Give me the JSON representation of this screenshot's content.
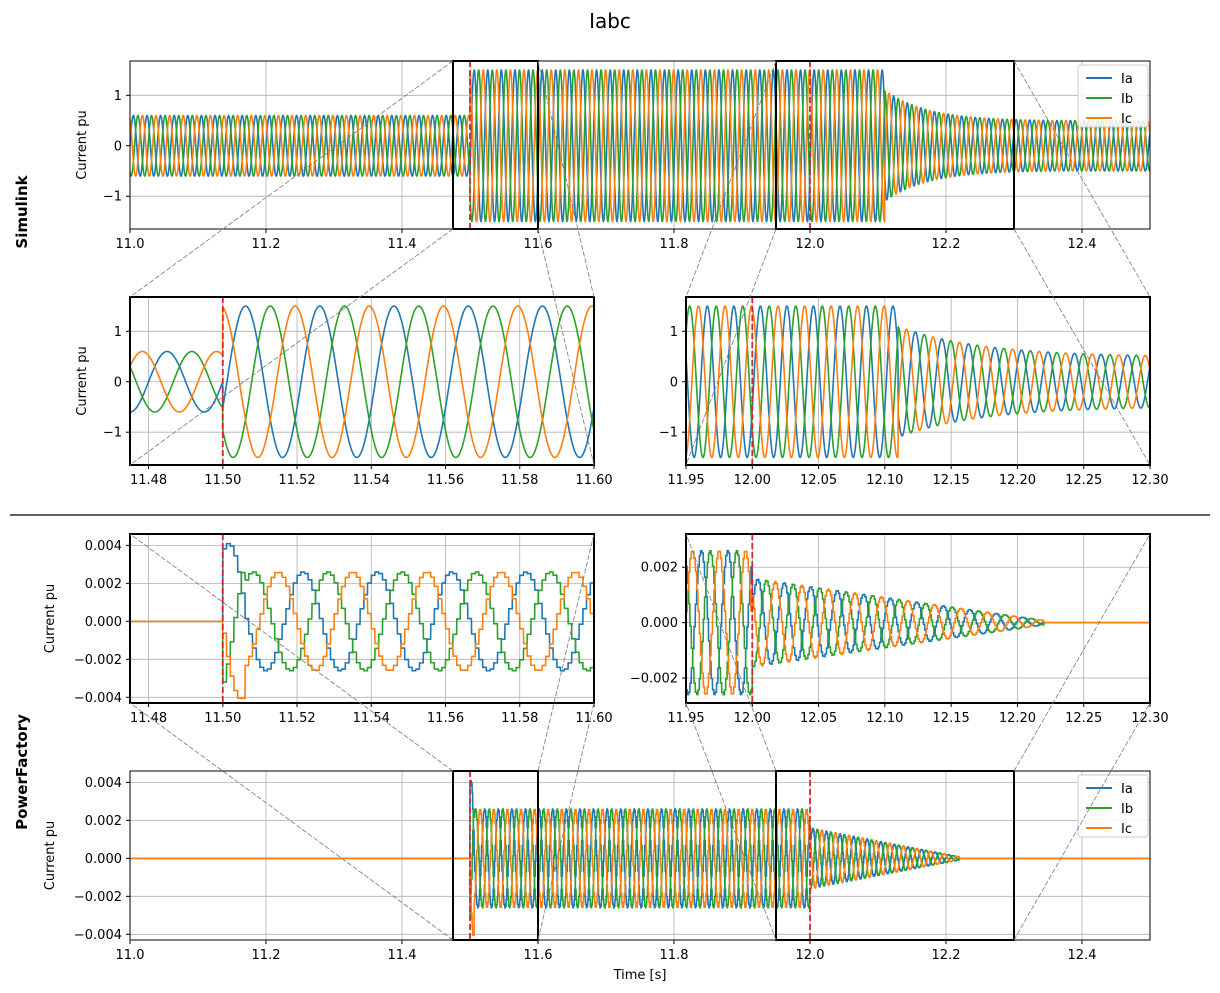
{
  "figure": {
    "title": "Iabc",
    "group_labels": [
      "Simulink",
      "PowerFactory"
    ],
    "colors": {
      "Ia": "#1f77b4",
      "Ib": "#2ca02c",
      "Ic": "#ff7f0e",
      "marker": "#d62728"
    }
  },
  "chart_data": [
    {
      "id": "sim-main",
      "type": "line",
      "group": "Simulink",
      "title": "",
      "xlabel": "",
      "ylabel": "Current pu",
      "xlim": [
        11.0,
        12.5
      ],
      "ylim": [
        -1.65,
        1.68
      ],
      "xticks": [
        11.0,
        11.2,
        11.4,
        11.6,
        11.8,
        12.0,
        12.2,
        12.4
      ],
      "xtick_labels": [
        "11.0",
        "11.2",
        "11.4",
        "11.6",
        "11.8",
        "12.0",
        "12.2",
        "12.4"
      ],
      "yticks": [
        -1,
        0,
        1
      ],
      "ytick_labels": [
        "−1",
        "0",
        "1"
      ],
      "grid": true,
      "legend": {
        "placement": "top-right",
        "entries": [
          "Ia",
          "Ib",
          "Ic"
        ]
      },
      "vlines": [
        11.5,
        12.0
      ],
      "zoom_boxes": [
        [
          11.475,
          11.6
        ],
        [
          11.95,
          12.3
        ]
      ],
      "series": [
        {
          "name": "Ia",
          "color": "#1f77b4"
        },
        {
          "name": "Ib",
          "color": "#2ca02c"
        },
        {
          "name": "Ic",
          "color": "#ff7f0e"
        }
      ],
      "model": {
        "kind": "simulink",
        "f": 50,
        "pre_amp": 0.6,
        "fault_amp": 1.5,
        "post_amp_start": 1.1,
        "post_amp_end": 0.5,
        "t_fault": 11.5,
        "t_clear": 12.0,
        "t_recover": 12.11
      }
    },
    {
      "id": "sim-zoom-left",
      "type": "line",
      "group": "Simulink",
      "title": "",
      "xlabel": "",
      "ylabel": "Current pu",
      "xlim": [
        11.475,
        11.6
      ],
      "ylim": [
        -1.65,
        1.68
      ],
      "xticks": [
        11.48,
        11.5,
        11.52,
        11.54,
        11.56,
        11.58,
        11.6
      ],
      "xtick_labels": [
        "11.48",
        "11.50",
        "11.52",
        "11.54",
        "11.56",
        "11.58",
        "11.60"
      ],
      "yticks": [
        -1,
        0,
        1
      ],
      "ytick_labels": [
        "−1",
        "0",
        "1"
      ],
      "grid": true,
      "vlines": [
        11.5
      ],
      "series": [
        {
          "name": "Ia",
          "color": "#1f77b4"
        },
        {
          "name": "Ib",
          "color": "#2ca02c"
        },
        {
          "name": "Ic",
          "color": "#ff7f0e"
        }
      ],
      "model": {
        "kind": "simulink",
        "f": 50,
        "pre_amp": 0.6,
        "fault_amp": 1.5,
        "post_amp_start": 1.1,
        "post_amp_end": 0.5,
        "t_fault": 11.5,
        "t_clear": 12.0,
        "t_recover": 12.11
      }
    },
    {
      "id": "sim-zoom-right",
      "type": "line",
      "group": "Simulink",
      "title": "",
      "xlabel": "",
      "ylabel": "",
      "xlim": [
        11.95,
        12.3
      ],
      "ylim": [
        -1.65,
        1.68
      ],
      "xticks": [
        11.95,
        12.0,
        12.05,
        12.1,
        12.15,
        12.2,
        12.25,
        12.3
      ],
      "xtick_labels": [
        "11.95",
        "12.00",
        "12.05",
        "12.10",
        "12.15",
        "12.20",
        "12.25",
        "12.30"
      ],
      "yticks": [
        -1,
        0,
        1
      ],
      "ytick_labels": [
        "−1",
        "0",
        "1"
      ],
      "grid": true,
      "vlines": [
        12.0
      ],
      "series": [
        {
          "name": "Ia",
          "color": "#1f77b4"
        },
        {
          "name": "Ib",
          "color": "#2ca02c"
        },
        {
          "name": "Ic",
          "color": "#ff7f0e"
        }
      ],
      "model": {
        "kind": "simulink",
        "f": 50,
        "pre_amp": 0.6,
        "fault_amp": 1.5,
        "post_amp_start": 1.1,
        "post_amp_end": 0.5,
        "t_fault": 11.5,
        "t_clear": 12.0,
        "t_recover": 12.11
      }
    },
    {
      "id": "pf-zoom-left",
      "type": "line",
      "group": "PowerFactory",
      "title": "",
      "xlabel": "",
      "ylabel": "Current pu",
      "xlim": [
        11.475,
        11.6
      ],
      "ylim": [
        -0.0043,
        0.0046
      ],
      "xticks": [
        11.48,
        11.5,
        11.52,
        11.54,
        11.56,
        11.58,
        11.6
      ],
      "xtick_labels": [
        "11.48",
        "11.50",
        "11.52",
        "11.54",
        "11.56",
        "11.58",
        "11.60"
      ],
      "yticks": [
        -0.004,
        -0.002,
        0.0,
        0.002,
        0.004
      ],
      "ytick_labels": [
        "−0.004",
        "−0.002",
        "0.000",
        "0.002",
        "0.004"
      ],
      "grid": true,
      "vlines": [
        11.5
      ],
      "series": [
        {
          "name": "Ia",
          "color": "#1f77b4"
        },
        {
          "name": "Ib",
          "color": "#2ca02c"
        },
        {
          "name": "Ic",
          "color": "#ff7f0e"
        }
      ],
      "model": {
        "kind": "powerfactory",
        "f": 50,
        "fault_amp": 0.0026,
        "spike_amp": 0.0041,
        "post_amp_start": 0.0016,
        "post_amp_end": 0.0004,
        "t_fault": 11.5,
        "t_clear": 12.0,
        "t_end_post": 12.22,
        "step": 0.001
      }
    },
    {
      "id": "pf-zoom-right",
      "type": "line",
      "group": "PowerFactory",
      "title": "",
      "xlabel": "",
      "ylabel": "",
      "xlim": [
        11.95,
        12.3
      ],
      "ylim": [
        -0.0029,
        0.0032
      ],
      "xticks": [
        11.95,
        12.0,
        12.05,
        12.1,
        12.15,
        12.2,
        12.25,
        12.3
      ],
      "xtick_labels": [
        "11.95",
        "12.00",
        "12.05",
        "12.10",
        "12.15",
        "12.20",
        "12.25",
        "12.30"
      ],
      "yticks": [
        -0.002,
        0.0,
        0.002
      ],
      "ytick_labels": [
        "−0.002",
        "0.000",
        "0.002"
      ],
      "grid": true,
      "vlines": [
        12.0
      ],
      "series": [
        {
          "name": "Ia",
          "color": "#1f77b4"
        },
        {
          "name": "Ib",
          "color": "#2ca02c"
        },
        {
          "name": "Ic",
          "color": "#ff7f0e"
        }
      ],
      "model": {
        "kind": "powerfactory",
        "f": 50,
        "fault_amp": 0.0026,
        "spike_amp": 0.0041,
        "post_amp_start": 0.0016,
        "post_amp_end": 0.0004,
        "t_fault": 11.5,
        "t_clear": 12.0,
        "t_end_post": 12.22,
        "step": 0.001
      }
    },
    {
      "id": "pf-main",
      "type": "line",
      "group": "PowerFactory",
      "title": "",
      "xlabel": "Time [s]",
      "ylabel": "Current pu",
      "xlim": [
        11.0,
        12.5
      ],
      "ylim": [
        -0.0043,
        0.0046
      ],
      "xticks": [
        11.0,
        11.2,
        11.4,
        11.6,
        11.8,
        12.0,
        12.2,
        12.4
      ],
      "xtick_labels": [
        "11.0",
        "11.2",
        "11.4",
        "11.6",
        "11.8",
        "12.0",
        "12.2",
        "12.4"
      ],
      "yticks": [
        -0.004,
        -0.002,
        0.0,
        0.002,
        0.004
      ],
      "ytick_labels": [
        "−0.004",
        "−0.002",
        "0.000",
        "0.002",
        "0.004"
      ],
      "grid": true,
      "legend": {
        "placement": "top-right",
        "entries": [
          "Ia",
          "Ib",
          "Ic"
        ]
      },
      "vlines": [
        11.5,
        12.0
      ],
      "zoom_boxes": [
        [
          11.475,
          11.6
        ],
        [
          11.95,
          12.3
        ]
      ],
      "series": [
        {
          "name": "Ia",
          "color": "#1f77b4"
        },
        {
          "name": "Ib",
          "color": "#2ca02c"
        },
        {
          "name": "Ic",
          "color": "#ff7f0e"
        }
      ],
      "model": {
        "kind": "powerfactory",
        "f": 50,
        "fault_amp": 0.0026,
        "spike_amp": 0.0041,
        "post_amp_start": 0.0016,
        "post_amp_end": 0.0004,
        "t_fault": 11.5,
        "t_clear": 12.0,
        "t_end_post": 12.22,
        "step": 0.001
      }
    }
  ]
}
